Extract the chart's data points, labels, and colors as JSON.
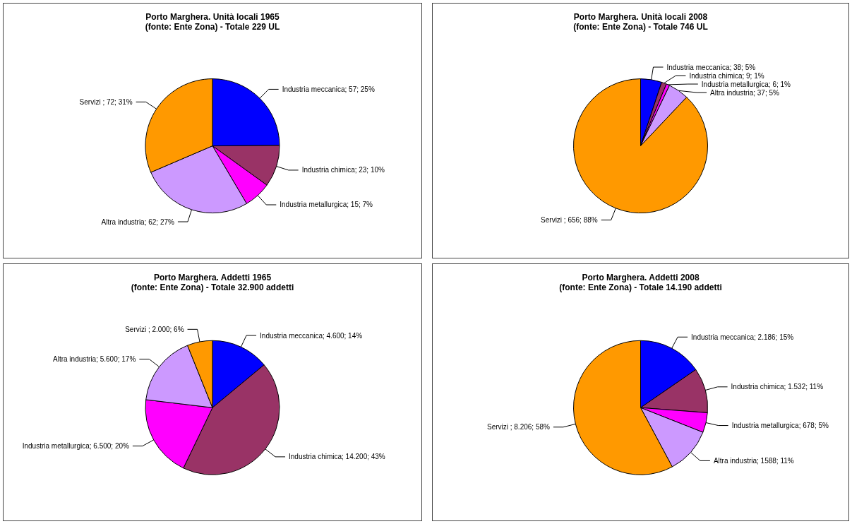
{
  "chart_data": [
    {
      "type": "pie",
      "title": "Porto Marghera. Unità locali 1965",
      "subtitle": "(fonte: Ente Zona) - Totale 229 UL",
      "categories": [
        "Industria meccanica",
        "Industria chimica",
        "Industria metallurgica",
        "Altra industria",
        "Servizi "
      ],
      "values": [
        57,
        23,
        15,
        62,
        72
      ],
      "value_labels": [
        "57; 25%",
        "23; 10%",
        "15; 7%",
        "62; 27%",
        "72; 31%"
      ],
      "colors": [
        "#0000ff",
        "#993366",
        "#ff00ff",
        "#cc99ff",
        "#ff9900"
      ]
    },
    {
      "type": "pie",
      "title": "Porto Marghera. Unità locali 2008",
      "subtitle": "(fonte: Ente Zona) - Totale 746 UL",
      "categories": [
        "Industria meccanica",
        "Industria chimica",
        "Industria metallurgica",
        "Altra industria",
        "Servizi "
      ],
      "values": [
        38,
        9,
        6,
        37,
        656
      ],
      "value_labels": [
        "38; 5%",
        "9; 1%",
        "6; 1%",
        "37; 5%",
        "656; 88%"
      ],
      "colors": [
        "#0000ff",
        "#993366",
        "#ff00ff",
        "#cc99ff",
        "#ff9900"
      ]
    },
    {
      "type": "pie",
      "title": "Porto Marghera. Addetti 1965",
      "subtitle": "(fonte: Ente Zona) - Totale 32.900 addetti",
      "categories": [
        "Industria meccanica",
        "Industria chimica",
        "Industria metallurgica",
        "Altra industria",
        "Servizi "
      ],
      "values": [
        4600,
        14200,
        6500,
        5600,
        2000
      ],
      "value_labels": [
        "4.600; 14%",
        "14.200; 43%",
        "6.500; 20%",
        "5.600; 17%",
        "2.000; 6%"
      ],
      "colors": [
        "#0000ff",
        "#993366",
        "#ff00ff",
        "#cc99ff",
        "#ff9900"
      ]
    },
    {
      "type": "pie",
      "title": "Porto Marghera. Addetti 2008",
      "subtitle": "(fonte: Ente Zona) - Totale 14.190 addetti",
      "categories": [
        "Industria meccanica",
        "Industria chimica",
        "Industria metallurgica",
        "Altra industria",
        "Servizi "
      ],
      "values": [
        2186,
        1532,
        678,
        1588,
        8206
      ],
      "value_labels": [
        "2.186; 15%",
        "1.532; 11%",
        "678; 5%",
        "1588; 11%",
        "8.206; 58%"
      ],
      "colors": [
        "#0000ff",
        "#993366",
        "#ff00ff",
        "#cc99ff",
        "#ff9900"
      ]
    }
  ]
}
